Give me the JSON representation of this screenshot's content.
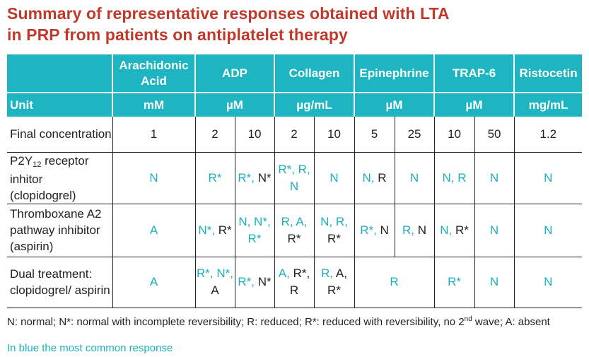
{
  "title": [
    "Summary of representative responses obtained with LTA",
    "in PRP from patients on antiplatelet therapy"
  ],
  "colors": {
    "title": "#c0392b",
    "accent": "#1cb5c1",
    "common_response": "#1cb0bb",
    "other_response": "#222222"
  },
  "header": {
    "agonists": [
      "Arachidonic Acid",
      "ADP",
      "Collagen",
      "Epinephrine",
      "TRAP-6",
      "Ristocetin"
    ],
    "unit_label": "Unit",
    "units": [
      "mM",
      "µM",
      "µg/mL",
      "µM",
      "µM",
      "mg/mL"
    ]
  },
  "concentration_row": {
    "label": "Final concentration",
    "values": [
      "1",
      "2",
      "10",
      "2",
      "10",
      "5",
      "25",
      "10",
      "50",
      "1.2"
    ]
  },
  "rows": [
    {
      "label_parts": [
        "P2Y",
        "12",
        " receptor inhitor (clopidogrel)"
      ],
      "cells": [
        {
          "span": 1,
          "parts": [
            [
              "N",
              "teal"
            ]
          ]
        },
        {
          "span": 1,
          "parts": [
            [
              "R*",
              "teal"
            ]
          ]
        },
        {
          "span": 1,
          "parts": [
            [
              "R*, ",
              "teal"
            ],
            [
              "N*",
              "black"
            ]
          ]
        },
        {
          "span": 1,
          "parts": [
            [
              "R*, R, N",
              "teal"
            ]
          ]
        },
        {
          "span": 1,
          "parts": [
            [
              "N",
              "teal"
            ]
          ]
        },
        {
          "span": 1,
          "parts": [
            [
              "N, ",
              "teal"
            ],
            [
              "R",
              "black"
            ]
          ]
        },
        {
          "span": 1,
          "parts": [
            [
              "N",
              "teal"
            ]
          ]
        },
        {
          "span": 1,
          "parts": [
            [
              "N, R",
              "teal"
            ]
          ]
        },
        {
          "span": 1,
          "parts": [
            [
              "N",
              "teal"
            ]
          ]
        },
        {
          "span": 1,
          "parts": [
            [
              "N",
              "teal"
            ]
          ]
        }
      ]
    },
    {
      "label_parts": [
        "Thromboxane A2 pathway inhibitor (aspirin)"
      ],
      "cells": [
        {
          "span": 1,
          "parts": [
            [
              "A",
              "teal"
            ]
          ]
        },
        {
          "span": 1,
          "parts": [
            [
              "N*, ",
              "teal"
            ],
            [
              "R*",
              "black"
            ]
          ]
        },
        {
          "span": 1,
          "parts": [
            [
              "N, N*, R*",
              "teal"
            ]
          ]
        },
        {
          "span": 1,
          "parts": [
            [
              "R, A, ",
              "teal"
            ],
            [
              "R*",
              "black"
            ]
          ]
        },
        {
          "span": 1,
          "parts": [
            [
              "N, R, ",
              "teal"
            ],
            [
              "R*",
              "black"
            ]
          ]
        },
        {
          "span": 1,
          "parts": [
            [
              "R*, ",
              "teal"
            ],
            [
              "N",
              "black"
            ]
          ]
        },
        {
          "span": 1,
          "parts": [
            [
              "R, ",
              "teal"
            ],
            [
              "N",
              "black"
            ]
          ]
        },
        {
          "span": 1,
          "parts": [
            [
              "N, ",
              "teal"
            ],
            [
              "R*",
              "black"
            ]
          ]
        },
        {
          "span": 1,
          "parts": [
            [
              "N",
              "teal"
            ]
          ]
        },
        {
          "span": 1,
          "parts": [
            [
              "N",
              "teal"
            ]
          ]
        }
      ]
    },
    {
      "label_parts": [
        "Dual treatment: clopidogrel/ aspirin"
      ],
      "cells": [
        {
          "span": 1,
          "parts": [
            [
              "A",
              "teal"
            ]
          ]
        },
        {
          "span": 1,
          "parts": [
            [
              "R*, N*, ",
              "teal"
            ],
            [
              "A",
              "black"
            ]
          ]
        },
        {
          "span": 1,
          "parts": [
            [
              "R*, ",
              "teal"
            ],
            [
              "N*",
              "black"
            ]
          ]
        },
        {
          "span": 1,
          "parts": [
            [
              "A, ",
              "teal"
            ],
            [
              "R*, R",
              "black"
            ]
          ]
        },
        {
          "span": 1,
          "parts": [
            [
              "R, ",
              "teal"
            ],
            [
              "A, R*",
              "black"
            ]
          ]
        },
        {
          "span": 2,
          "parts": [
            [
              "R",
              "teal"
            ]
          ]
        },
        {
          "span": 1,
          "parts": [
            [
              "R*",
              "teal"
            ]
          ]
        },
        {
          "span": 1,
          "parts": [
            [
              "N",
              "teal"
            ]
          ]
        },
        {
          "span": 1,
          "parts": [
            [
              "N",
              "teal"
            ]
          ]
        }
      ]
    }
  ],
  "footnote": {
    "text": "N: normal;  N*: normal with incomplete reversibility;  R: reduced;  R*: reduced with reversibility, no 2",
    "sup": "nd",
    "text_end": " wave;  A: absent"
  },
  "common_note": "In blue the most common response"
}
